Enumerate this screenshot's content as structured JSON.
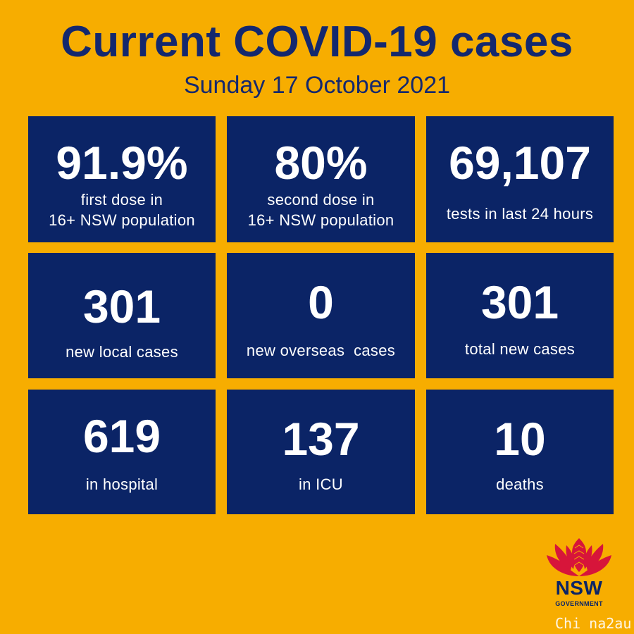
{
  "header": {
    "title": "Current COVID-19 cases",
    "date": "Sunday 17 October 2021"
  },
  "stats": [
    {
      "value": "91.9%",
      "label_line1": "first dose in",
      "label_line2": "16+ NSW population"
    },
    {
      "value": "80%",
      "label_line1": "second dose in",
      "label_line2": "16+ NSW population"
    },
    {
      "value": "69,107",
      "label": "tests in last 24 hours"
    },
    {
      "value": "301",
      "label": "new local cases"
    },
    {
      "value": "0",
      "label": "new overseas  cases"
    },
    {
      "value": "301",
      "label": "total new cases"
    },
    {
      "value": "619",
      "label": "in hospital"
    },
    {
      "value": "137",
      "label": "in ICU"
    },
    {
      "value": "10",
      "label": "deaths"
    }
  ],
  "logo": {
    "name": "NSW",
    "subtitle": "GOVERNMENT"
  },
  "watermark": "Chi na2au",
  "colors": {
    "background": "#f7ad00",
    "tile": "#0b2466",
    "title": "#14286e",
    "waratah_red": "#d7153a"
  }
}
